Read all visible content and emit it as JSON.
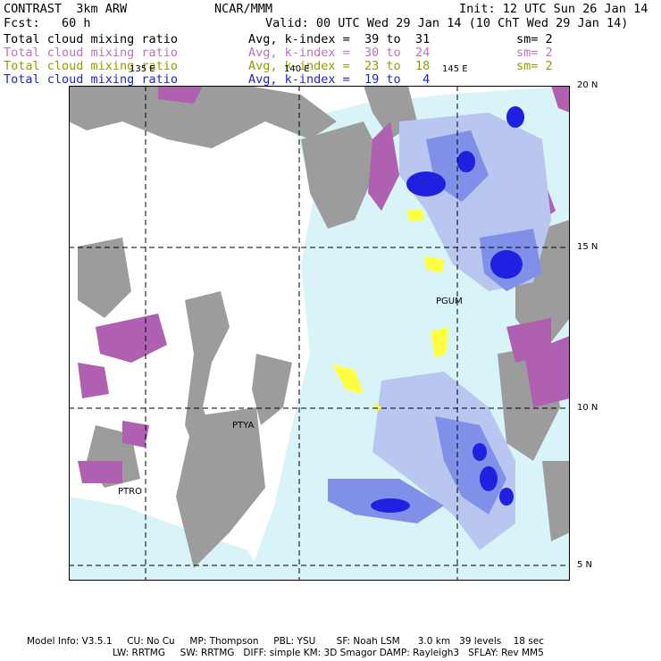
{
  "header": {
    "model_name": "CONTRAST  3km ARW",
    "center": "NCAR/MMM",
    "init": "Init: 12 UTC Sun 26 Jan 14",
    "fcst": "Fcst:   60 h",
    "valid": "Valid: 00 UTC Wed 29 Jan 14 (10 ChT Wed 29 Jan 14)"
  },
  "legend": [
    {
      "field": "Total cloud mixing ratio",
      "range": "Avg, k-index =  39 to  31",
      "smooth": "sm= 2",
      "color": "#000000"
    },
    {
      "field": "Total cloud mixing ratio",
      "range": "Avg, k-index =  30 to  24",
      "smooth": "sm= 2",
      "color": "#c070c0"
    },
    {
      "field": "Total cloud mixing ratio",
      "range": "Avg, k-index =  23 to  18",
      "smooth": "sm= 2",
      "color": "#9a9a00"
    },
    {
      "field": "Total cloud mixing ratio",
      "range": "Avg, k-index =  19 to   4",
      "smooth": "",
      "color": "#2020e0"
    }
  ],
  "map": {
    "longitude_labels": [
      "135 E",
      "140 E",
      "145 E"
    ],
    "latitude_labels": [
      "20 N",
      "15 N",
      "10 N",
      "5 N"
    ],
    "stations": [
      "PGUM",
      "PTYA",
      "PTRO"
    ]
  },
  "footer": {
    "line1": "Model Info: V3.5.1     CU: No Cu     MP: Thompson     PBL: YSU       SF: Noah LSM      3.0 km   39 levels    18 sec",
    "line2": "LW: RRTMG     SW: RRTMG   DIFF: simple KM: 3D Smagor DAMP: Rayleigh3   SFLAY: Rev MM5"
  },
  "colors": {
    "gray_high": "#9a9a9a",
    "purple_mid": "#b060b0",
    "yellow_low": "#ffff40",
    "blue_fill_light": "#d8f4f8",
    "blue_fill_mid": "#8090e8",
    "blue_fill_dark": "#2020e0"
  }
}
